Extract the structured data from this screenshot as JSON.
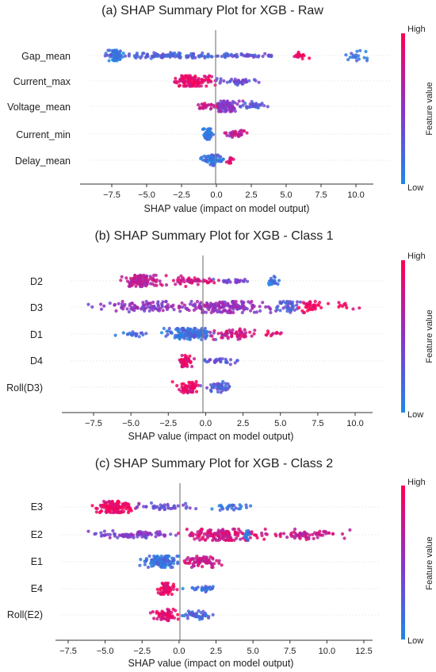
{
  "colors": {
    "low": "#1e88e5",
    "high": "#ff0052",
    "zero_line": "#808080",
    "axis": "#333333"
  },
  "chart_data": [
    {
      "type": "scatter",
      "subtype": "shap-beeswarm",
      "title": "(a) SHAP Summary Plot for XGB - Raw",
      "xlabel": "SHAP value (impact on model output)",
      "xlim": [
        -9,
        12.5
      ],
      "xticks": [
        -7.5,
        -5.0,
        -2.5,
        0.0,
        2.5,
        5.0,
        7.5,
        10.0
      ],
      "xtick_labels": [
        "−7.5",
        "−5.0",
        "−2.5",
        "0.0",
        "2.5",
        "5.0",
        "7.5",
        "10.0"
      ],
      "grid": false,
      "colorbar": {
        "label": "Feature value",
        "high": "High",
        "low": "Low"
      },
      "features": [
        {
          "name": "Gap_mean",
          "clusters": [
            {
              "center": -7.2,
              "spread": 0.4,
              "n": 70,
              "color": 0.1,
              "height": 1.0
            },
            {
              "center": -3.0,
              "spread": 3.5,
              "n": 110,
              "color": 0.22,
              "height": 0.45
            },
            {
              "center": 2.5,
              "spread": 2.0,
              "n": 40,
              "color": 0.3,
              "height": 0.35
            },
            {
              "center": 6.0,
              "spread": 0.6,
              "n": 18,
              "color": 0.95,
              "height": 0.7
            },
            {
              "center": 10.0,
              "spread": 0.7,
              "n": 18,
              "color": 0.1,
              "height": 0.7
            }
          ]
        },
        {
          "name": "Current_max",
          "clusters": [
            {
              "center": -1.8,
              "spread": 1.2,
              "n": 110,
              "color": 0.9,
              "height": 1.0
            },
            {
              "center": 1.5,
              "spread": 1.2,
              "n": 40,
              "color": 0.35,
              "height": 0.5
            }
          ]
        },
        {
          "name": "Voltage_mean",
          "clusters": [
            {
              "center": 0.7,
              "spread": 0.8,
              "n": 90,
              "color": 0.5,
              "height": 1.0
            },
            {
              "center": -0.8,
              "spread": 0.6,
              "n": 25,
              "color": 0.8,
              "height": 0.5
            },
            {
              "center": 2.8,
              "spread": 1.0,
              "n": 30,
              "color": 0.25,
              "height": 0.5
            }
          ]
        },
        {
          "name": "Current_min",
          "clusters": [
            {
              "center": -0.6,
              "spread": 0.3,
              "n": 60,
              "color": 0.1,
              "height": 1.0
            },
            {
              "center": 1.5,
              "spread": 0.8,
              "n": 35,
              "color": 0.7,
              "height": 0.45
            }
          ]
        },
        {
          "name": "Delay_mean",
          "clusters": [
            {
              "center": -0.3,
              "spread": 0.6,
              "n": 75,
              "color": 0.15,
              "height": 1.0
            },
            {
              "center": 1.0,
              "spread": 0.2,
              "n": 15,
              "color": 0.85,
              "height": 0.6
            }
          ]
        }
      ]
    },
    {
      "type": "scatter",
      "subtype": "shap-beeswarm",
      "title": "(b) SHAP Summary Plot for XGB - Class 1",
      "xlabel": "SHAP value (impact on model output)",
      "xlim": [
        -9,
        12
      ],
      "xticks": [
        -7.5,
        -5.0,
        -2.5,
        0.0,
        2.5,
        5.0,
        7.5,
        10.0
      ],
      "xtick_labels": [
        "−7.5",
        "−5.0",
        "−2.5",
        "0.0",
        "2.5",
        "5.0",
        "7.5",
        "10.0"
      ],
      "grid": false,
      "colorbar": {
        "label": "Feature value",
        "high": "High",
        "low": "Low"
      },
      "features": [
        {
          "name": "D2",
          "clusters": [
            {
              "center": -4.3,
              "spread": 0.9,
              "n": 120,
              "color": 0.7,
              "height": 1.0
            },
            {
              "center": -1.0,
              "spread": 1.6,
              "n": 60,
              "color": 0.8,
              "height": 0.55
            },
            {
              "center": 2.0,
              "spread": 1.2,
              "n": 25,
              "color": 0.35,
              "height": 0.3
            },
            {
              "center": 4.5,
              "spread": 0.3,
              "n": 20,
              "color": 0.1,
              "height": 0.6
            }
          ]
        },
        {
          "name": "D3",
          "clusters": [
            {
              "center": -4.0,
              "spread": 2.5,
              "n": 90,
              "color": 0.5,
              "height": 0.7
            },
            {
              "center": 1.5,
              "spread": 2.5,
              "n": 170,
              "color": 0.55,
              "height": 1.0
            },
            {
              "center": 5.5,
              "spread": 0.8,
              "n": 40,
              "color": 0.25,
              "height": 1.0
            },
            {
              "center": 7.0,
              "spread": 0.7,
              "n": 35,
              "color": 0.92,
              "height": 0.8
            },
            {
              "center": 9.5,
              "spread": 0.8,
              "n": 10,
              "color": 0.95,
              "height": 0.4
            }
          ]
        },
        {
          "name": "D1",
          "clusters": [
            {
              "center": -1.0,
              "spread": 1.5,
              "n": 140,
              "color": 0.15,
              "height": 1.0
            },
            {
              "center": 1.8,
              "spread": 1.0,
              "n": 60,
              "color": 0.8,
              "height": 0.7
            },
            {
              "center": -5.0,
              "spread": 1.2,
              "n": 20,
              "color": 0.15,
              "height": 0.3
            },
            {
              "center": 4.5,
              "spread": 0.5,
              "n": 12,
              "color": 0.9,
              "height": 0.4
            }
          ]
        },
        {
          "name": "D4",
          "clusters": [
            {
              "center": -1.4,
              "spread": 0.4,
              "n": 60,
              "color": 0.88,
              "height": 1.0
            },
            {
              "center": 1.0,
              "spread": 1.2,
              "n": 30,
              "color": 0.3,
              "height": 0.35
            }
          ]
        },
        {
          "name": "Roll(D3)",
          "clusters": [
            {
              "center": -1.2,
              "spread": 0.6,
              "n": 60,
              "color": 0.9,
              "height": 1.0
            },
            {
              "center": 0.9,
              "spread": 0.8,
              "n": 45,
              "color": 0.25,
              "height": 0.7
            }
          ]
        }
      ]
    },
    {
      "type": "scatter",
      "subtype": "shap-beeswarm",
      "title": "(c) SHAP Summary Plot for XGB - Class 2",
      "xlabel": "SHAP value (impact on model output)",
      "xlim": [
        -8,
        13.5
      ],
      "xticks": [
        -7.5,
        -5.0,
        -2.5,
        0.0,
        2.5,
        5.0,
        7.5,
        10.0,
        12.5
      ],
      "xtick_labels": [
        "−7.5",
        "−5.0",
        "−2.5",
        "0.0",
        "2.5",
        "5.0",
        "7.5",
        "10.0",
        "12.5"
      ],
      "grid": false,
      "colorbar": {
        "label": "Feature value",
        "high": "High",
        "low": "Low"
      },
      "features": [
        {
          "name": "E3",
          "clusters": [
            {
              "center": -4.3,
              "spread": 1.0,
              "n": 120,
              "color": 0.92,
              "height": 1.0
            },
            {
              "center": -1.0,
              "spread": 1.5,
              "n": 40,
              "color": 0.35,
              "height": 0.45
            },
            {
              "center": 3.5,
              "spread": 1.0,
              "n": 25,
              "color": 0.12,
              "height": 0.4
            }
          ]
        },
        {
          "name": "E2",
          "clusters": [
            {
              "center": -3.0,
              "spread": 2.5,
              "n": 80,
              "color": 0.45,
              "height": 0.5
            },
            {
              "center": 3.0,
              "spread": 2.0,
              "n": 140,
              "color": 0.8,
              "height": 1.0
            },
            {
              "center": 8.5,
              "spread": 2.0,
              "n": 70,
              "color": 0.75,
              "height": 0.65
            },
            {
              "center": 4.6,
              "spread": 0.2,
              "n": 15,
              "color": 0.1,
              "height": 0.9
            }
          ]
        },
        {
          "name": "E1",
          "clusters": [
            {
              "center": -1.2,
              "spread": 0.9,
              "n": 120,
              "color": 0.15,
              "height": 1.0
            },
            {
              "center": 1.5,
              "spread": 1.1,
              "n": 70,
              "color": 0.78,
              "height": 0.8
            }
          ]
        },
        {
          "name": "E4",
          "clusters": [
            {
              "center": -0.9,
              "spread": 0.5,
              "n": 65,
              "color": 0.9,
              "height": 1.0
            },
            {
              "center": 1.8,
              "spread": 0.9,
              "n": 30,
              "color": 0.15,
              "height": 0.35
            }
          ]
        },
        {
          "name": "Roll(E2)",
          "clusters": [
            {
              "center": -0.9,
              "spread": 0.7,
              "n": 60,
              "color": 0.88,
              "height": 1.0
            },
            {
              "center": 1.2,
              "spread": 0.9,
              "n": 45,
              "color": 0.2,
              "height": 0.65
            }
          ]
        }
      ]
    }
  ]
}
